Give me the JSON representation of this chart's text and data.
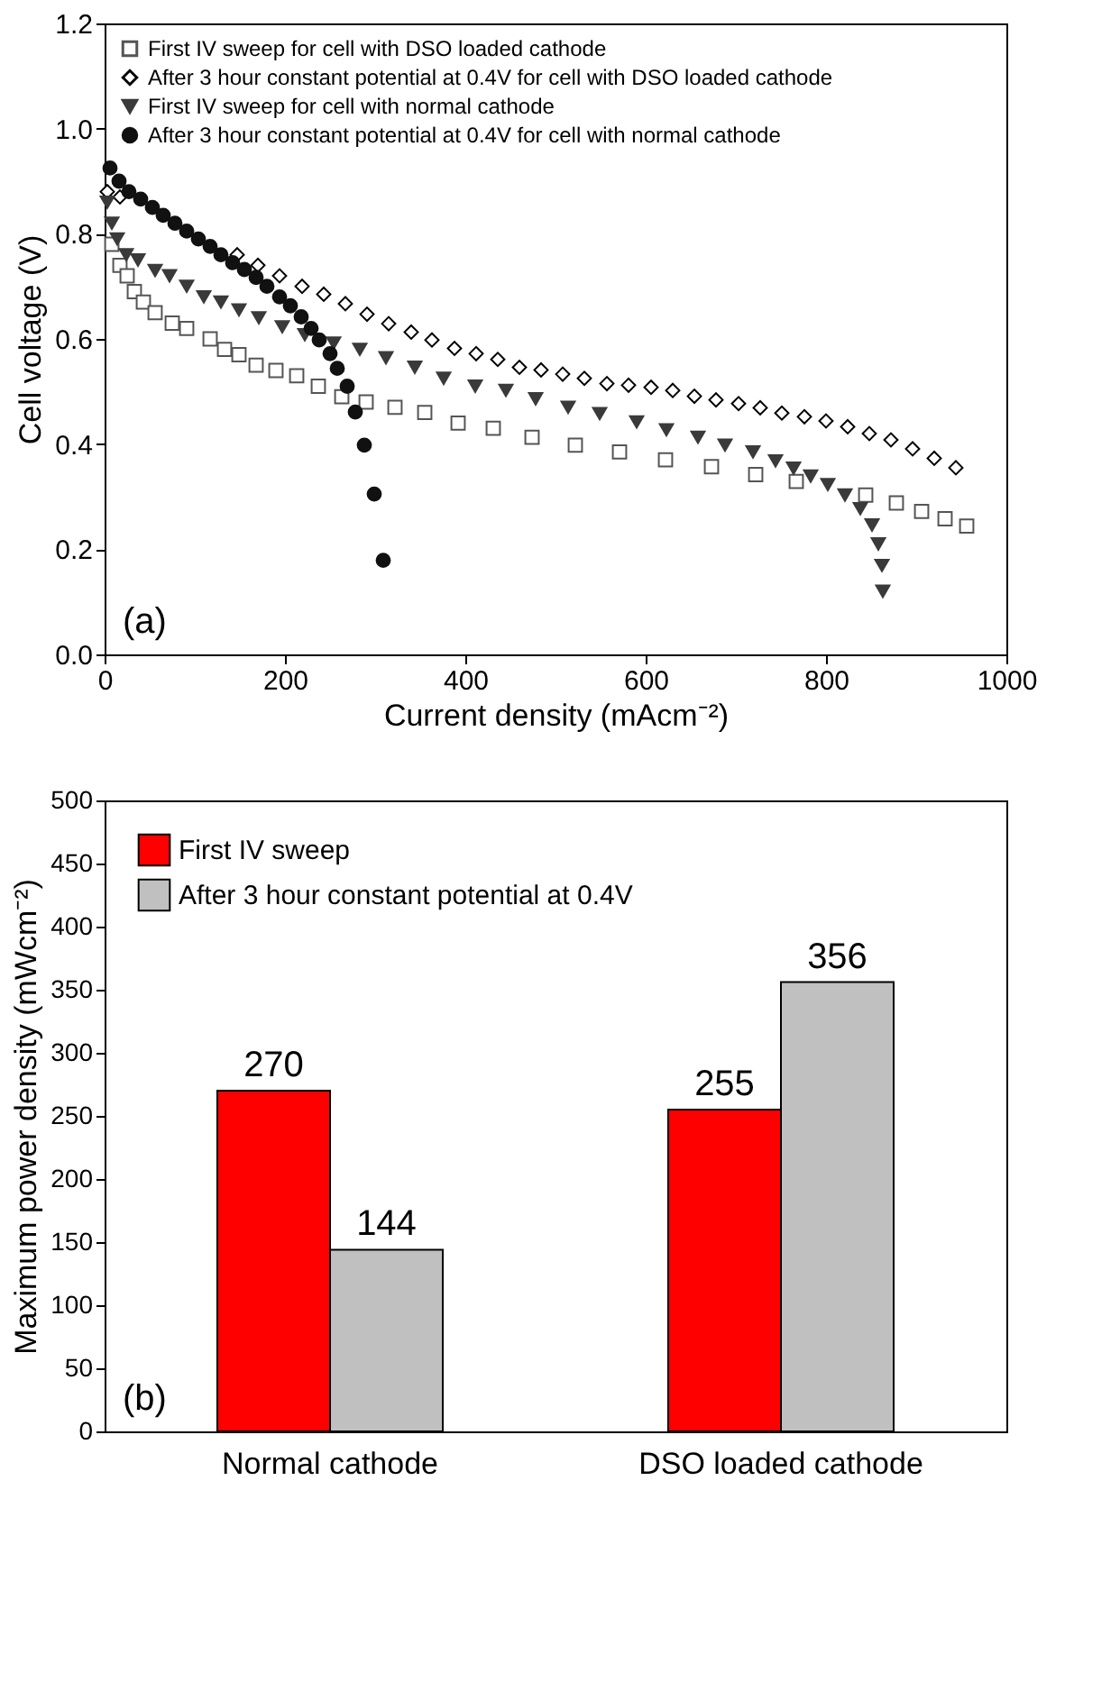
{
  "chart_data": [
    {
      "type": "scatter",
      "xlabel": "Current density (mAcm⁻²)",
      "ylabel": "Cell voltage (V)",
      "xlim": [
        0,
        1000
      ],
      "ylim": [
        0,
        1.2
      ],
      "xticks": [
        0,
        200,
        400,
        600,
        800,
        1000
      ],
      "yticks": [
        {
          "value": 0,
          "label": "0.0"
        },
        {
          "value": 0.2,
          "label": "0.2"
        },
        {
          "value": 0.4,
          "label": "0.4"
        },
        {
          "value": 0.6,
          "label": "0.6"
        },
        {
          "value": 0.8,
          "label": "0.8"
        },
        {
          "value": 1.0,
          "label": "1.0"
        },
        {
          "value": 1.2,
          "label": "1.2"
        }
      ],
      "legend": "top left",
      "grid": false,
      "annotations": [
        "(a)"
      ],
      "series": [
        {
          "name": "First IV sweep for cell with DSO loaded cathode",
          "color": "#555555",
          "marker": "square",
          "x": [
            8,
            17,
            25,
            33,
            43,
            56,
            75,
            91,
            117,
            133,
            149,
            168,
            190,
            213,
            237,
            263,
            290,
            322,
            355,
            392,
            431,
            474,
            522,
            571,
            622,
            673,
            722,
            767,
            844,
            878,
            906,
            932,
            956
          ],
          "values": [
            0.78,
            0.74,
            0.72,
            0.69,
            0.67,
            0.65,
            0.63,
            0.62,
            0.6,
            0.58,
            0.57,
            0.55,
            0.54,
            0.53,
            0.51,
            0.49,
            0.48,
            0.47,
            0.46,
            0.44,
            0.43,
            0.413,
            0.398,
            0.385,
            0.37,
            0.357,
            0.342,
            0.329,
            0.303,
            0.288,
            0.272,
            0.258,
            0.244
          ]
        },
        {
          "name": "After 3 hour constant potential at 0.4V for cell with DSO loaded cathode",
          "color": "#000000",
          "marker": "diamond",
          "x": [
            3,
            17,
            147,
            170,
            194,
            219,
            243,
            267,
            291,
            315,
            340,
            363,
            388,
            412,
            436,
            460,
            484,
            508,
            532,
            557,
            581,
            606,
            630,
            654,
            678,
            703,
            727,
            751,
            776,
            800,
            824,
            848,
            872,
            896,
            920,
            944
          ],
          "values": [
            0.88,
            0.87,
            0.76,
            0.74,
            0.72,
            0.7,
            0.685,
            0.667,
            0.647,
            0.629,
            0.613,
            0.598,
            0.582,
            0.572,
            0.561,
            0.546,
            0.541,
            0.533,
            0.525,
            0.515,
            0.512,
            0.508,
            0.502,
            0.491,
            0.484,
            0.477,
            0.469,
            0.459,
            0.452,
            0.444,
            0.433,
            0.42,
            0.408,
            0.391,
            0.373,
            0.355
          ]
        },
        {
          "name": "First IV sweep for cell with normal cathode",
          "color": "#3a3a3a",
          "marker": "triangle",
          "x": [
            3,
            8,
            14,
            24,
            37,
            56,
            72,
            91,
            110,
            129,
            149,
            171,
            197,
            222,
            254,
            283,
            312,
            344,
            376,
            411,
            445,
            478,
            514,
            549,
            590,
            623,
            658,
            688,
            719,
            744,
            764,
            783,
            802,
            821,
            838,
            851,
            858,
            862,
            863
          ],
          "values": [
            0.86,
            0.82,
            0.79,
            0.76,
            0.75,
            0.73,
            0.72,
            0.7,
            0.68,
            0.67,
            0.655,
            0.64,
            0.623,
            0.608,
            0.592,
            0.58,
            0.564,
            0.546,
            0.525,
            0.51,
            0.502,
            0.486,
            0.47,
            0.458,
            0.442,
            0.427,
            0.413,
            0.398,
            0.385,
            0.368,
            0.354,
            0.339,
            0.323,
            0.303,
            0.277,
            0.246,
            0.21,
            0.169,
            0.12
          ]
        },
        {
          "name": "After 3 hour constant potential at 0.4V for cell with normal cathode",
          "color": "#111111",
          "marker": "circle",
          "x": [
            6,
            16,
            27,
            40,
            53,
            65,
            78,
            91,
            104,
            117,
            129,
            142,
            155,
            168,
            180,
            194,
            206,
            218,
            229,
            238,
            250,
            258,
            269,
            278,
            288,
            299,
            309
          ],
          "values": [
            0.925,
            0.9,
            0.88,
            0.866,
            0.85,
            0.835,
            0.82,
            0.805,
            0.79,
            0.776,
            0.76,
            0.745,
            0.732,
            0.717,
            0.7,
            0.68,
            0.663,
            0.642,
            0.62,
            0.598,
            0.572,
            0.544,
            0.51,
            0.461,
            0.398,
            0.305,
            0.179
          ]
        }
      ]
    },
    {
      "type": "bar",
      "ylabel": "Maximum power density (mWcm⁻²)",
      "categories": [
        "Normal cathode",
        "DSO loaded cathode"
      ],
      "ylim": [
        0,
        500
      ],
      "yticks": [
        0,
        50,
        100,
        150,
        200,
        250,
        300,
        350,
        400,
        450,
        500
      ],
      "legend": "top left",
      "grid": false,
      "data_labels": true,
      "annotations": [
        "(b)"
      ],
      "series": [
        {
          "name": "First IV sweep",
          "color": "#ff0000",
          "values": [
            270,
            255
          ]
        },
        {
          "name": "After 3 hour constant potential at 0.4V",
          "color": "#c0c0c0",
          "values": [
            144,
            356
          ]
        }
      ]
    }
  ]
}
